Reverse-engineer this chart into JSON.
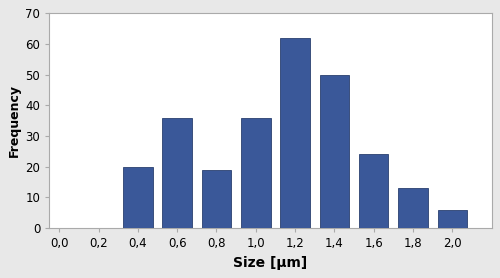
{
  "bar_positions": [
    0.4,
    0.6,
    0.8,
    1.0,
    1.2,
    1.4,
    1.6,
    1.8,
    2.0
  ],
  "bar_values": [
    20,
    36,
    19,
    36,
    62,
    50,
    24,
    13,
    6
  ],
  "bar_width": 0.15,
  "bar_color": "#3a5899",
  "bar_edgecolor": "#2a4070",
  "xlabel": "Size [μm]",
  "ylabel": "Frequency",
  "xlim": [
    -0.05,
    2.2
  ],
  "ylim": [
    0,
    70
  ],
  "xticks": [
    0.0,
    0.2,
    0.4,
    0.6,
    0.8,
    1.0,
    1.2,
    1.4,
    1.6,
    1.8,
    2.0
  ],
  "yticks": [
    0,
    10,
    20,
    30,
    40,
    50,
    60,
    70
  ],
  "xlabel_fontsize": 10,
  "ylabel_fontsize": 9,
  "tick_fontsize": 8.5,
  "background_color": "#ffffff",
  "figure_background": "#e8e8e8",
  "spine_color": "#aaaaaa"
}
